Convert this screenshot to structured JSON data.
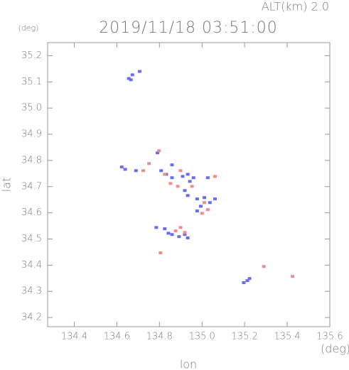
{
  "chart_data": {
    "type": "scatter",
    "title": "2019/11/18 03:51:00",
    "subtitle": "ALT(km) 2.0",
    "x_label": "lon",
    "y_label": "lat",
    "x_unit": "(deg)",
    "y_unit": "(deg)",
    "xlim": [
      134.275,
      135.6
    ],
    "ylim": [
      34.165,
      35.25
    ],
    "xticks": [
      134.4,
      134.6,
      134.8,
      {
        "value": 135,
        "label": "135.0"
      },
      135.2,
      135.4,
      135.6
    ],
    "yticks": [
      34.2,
      34.3,
      34.4,
      34.5,
      34.6,
      34.7,
      34.8,
      34.9,
      {
        "value": 35,
        "label": "35.0"
      },
      35.1,
      35.2
    ],
    "grid": false,
    "series": [
      {
        "color": "#6b6bf0",
        "x": [
          134.656,
          134.673,
          134.707,
          134.666,
          134.623,
          134.639,
          134.69,
          134.791,
          134.808,
          134.832,
          134.859,
          134.909,
          134.933,
          134.96,
          134.943,
          134.919,
          134.933,
          134.977,
          135.011,
          135.037,
          134.994,
          134.977,
          134.825,
          134.842,
          134.859,
          134.892,
          134.919,
          134.933,
          134.785,
          135.196,
          135.213,
          135.223,
          134.859,
          135.027,
          135.061
        ],
        "y": [
          35.113,
          35.127,
          35.14,
          35.108,
          34.775,
          34.766,
          34.761,
          34.829,
          34.761,
          34.747,
          34.734,
          34.739,
          34.747,
          34.734,
          34.72,
          34.685,
          34.666,
          34.653,
          34.658,
          34.639,
          34.625,
          34.607,
          34.539,
          34.522,
          34.517,
          34.509,
          34.517,
          34.504,
          34.544,
          34.333,
          34.341,
          34.349,
          34.783,
          34.734,
          34.653
        ]
      },
      {
        "color": "#f08c8c",
        "x": [
          134.751,
          134.798,
          134.825,
          134.852,
          134.886,
          134.899,
          134.953,
          135.011,
          135.027,
          135.0,
          134.876,
          134.899,
          134.919,
          134.805,
          135.29,
          135.425,
          135.061,
          134.724
        ],
        "y": [
          34.788,
          34.837,
          34.747,
          34.712,
          34.701,
          34.761,
          34.701,
          34.639,
          34.612,
          34.598,
          34.531,
          34.544,
          34.525,
          34.447,
          34.395,
          34.357,
          34.739,
          34.761
        ]
      }
    ]
  }
}
